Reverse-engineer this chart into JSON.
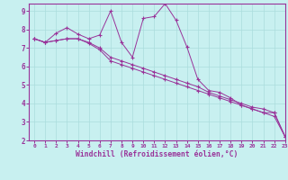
{
  "bg_color": "#c8f0f0",
  "line_color": "#993399",
  "grid_color": "#aadddd",
  "xlabel": "Windchill (Refroidissement éolien,°C)",
  "xlabel_color": "#993399",
  "xlim": [
    -0.5,
    23
  ],
  "ylim": [
    2,
    9.4
  ],
  "xticks": [
    0,
    1,
    2,
    3,
    4,
    5,
    6,
    7,
    8,
    9,
    10,
    11,
    12,
    13,
    14,
    15,
    16,
    17,
    18,
    19,
    20,
    21,
    22,
    23
  ],
  "yticks": [
    2,
    3,
    4,
    5,
    6,
    7,
    8,
    9
  ],
  "line1_x": [
    0,
    1,
    2,
    3,
    4,
    5,
    6,
    7,
    8,
    9,
    10,
    11,
    12,
    13,
    14,
    15,
    16,
    17,
    18,
    19,
    20,
    21,
    22,
    23
  ],
  "line1_y": [
    7.5,
    7.3,
    7.8,
    8.1,
    7.75,
    7.5,
    7.7,
    9.0,
    7.3,
    6.5,
    8.6,
    8.7,
    9.4,
    8.5,
    7.05,
    5.3,
    4.7,
    4.6,
    4.3,
    3.9,
    3.7,
    3.5,
    3.5,
    2.2
  ],
  "line2_x": [
    0,
    1,
    2,
    3,
    4,
    5,
    6,
    7,
    8,
    9,
    10,
    11,
    12,
    13,
    14,
    15,
    16,
    17,
    18,
    19,
    20,
    21,
    22,
    23
  ],
  "line2_y": [
    7.5,
    7.3,
    7.4,
    7.5,
    7.5,
    7.3,
    7.0,
    6.5,
    6.3,
    6.1,
    5.9,
    5.7,
    5.5,
    5.3,
    5.1,
    4.9,
    4.6,
    4.4,
    4.2,
    4.0,
    3.8,
    3.7,
    3.5,
    2.2
  ],
  "line3_x": [
    0,
    1,
    2,
    3,
    4,
    5,
    6,
    7,
    8,
    9,
    10,
    11,
    12,
    13,
    14,
    15,
    16,
    17,
    18,
    19,
    20,
    21,
    22,
    23
  ],
  "line3_y": [
    7.5,
    7.3,
    7.4,
    7.5,
    7.5,
    7.25,
    6.9,
    6.3,
    6.1,
    5.9,
    5.7,
    5.5,
    5.3,
    5.1,
    4.9,
    4.7,
    4.5,
    4.3,
    4.1,
    3.9,
    3.7,
    3.5,
    3.3,
    2.2
  ]
}
